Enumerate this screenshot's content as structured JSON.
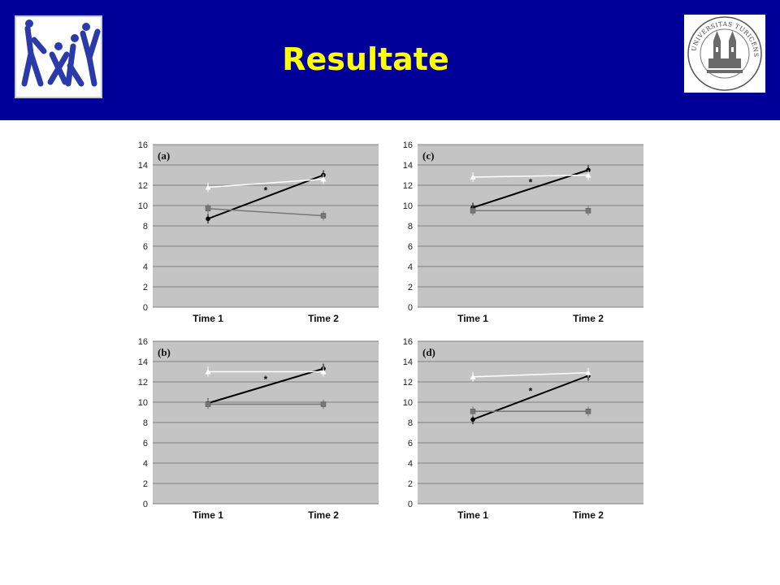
{
  "slide": {
    "title": "Resultate"
  },
  "colors": {
    "header_bg": "#000099",
    "title": "#ffff00",
    "plot_bg": "#c4c4c4",
    "gridline": "#7f7f7f"
  },
  "logos": {
    "left": "figures-logo-icon",
    "right": "university-seal-icon",
    "seal_text": "UNIVERSITAS TURICENSIS"
  },
  "chart_data": [
    {
      "type": "line",
      "panel": "(a)",
      "categories": [
        "Time 1",
        "Time 2"
      ],
      "ylim": [
        0,
        16
      ],
      "yticks": [
        0,
        2,
        4,
        6,
        8,
        10,
        12,
        14,
        16
      ],
      "grid": true,
      "annotation": "*",
      "series": [
        {
          "values": [
            8.7,
            13.0
          ],
          "color": "#000000"
        },
        {
          "values": [
            11.8,
            12.6
          ],
          "color": "#ffffff"
        },
        {
          "values": [
            9.7,
            9.0
          ],
          "color": "#777777"
        }
      ]
    },
    {
      "type": "line",
      "panel": "(c)",
      "categories": [
        "Time 1",
        "Time 2"
      ],
      "ylim": [
        0,
        16
      ],
      "yticks": [
        0,
        2,
        4,
        6,
        8,
        10,
        12,
        14,
        16
      ],
      "grid": true,
      "annotation": "*",
      "series": [
        {
          "values": [
            9.8,
            13.5
          ],
          "color": "#000000"
        },
        {
          "values": [
            12.8,
            13.0
          ],
          "color": "#ffffff"
        },
        {
          "values": [
            9.5,
            9.5
          ],
          "color": "#777777"
        }
      ]
    },
    {
      "type": "line",
      "panel": "(b)",
      "categories": [
        "Time 1",
        "Time 2"
      ],
      "ylim": [
        0,
        16
      ],
      "yticks": [
        0,
        2,
        4,
        6,
        8,
        10,
        12,
        14,
        16
      ],
      "grid": true,
      "annotation": "*",
      "series": [
        {
          "values": [
            9.9,
            13.3
          ],
          "color": "#000000"
        },
        {
          "values": [
            13.0,
            13.0
          ],
          "color": "#ffffff"
        },
        {
          "values": [
            9.8,
            9.8
          ],
          "color": "#777777"
        }
      ]
    },
    {
      "type": "line",
      "panel": "(d)",
      "categories": [
        "Time 1",
        "Time 2"
      ],
      "ylim": [
        0,
        16
      ],
      "yticks": [
        0,
        2,
        4,
        6,
        8,
        10,
        12,
        14,
        16
      ],
      "grid": true,
      "annotation": "*",
      "series": [
        {
          "values": [
            8.3,
            12.6
          ],
          "color": "#000000"
        },
        {
          "values": [
            12.5,
            12.9
          ],
          "color": "#ffffff"
        },
        {
          "values": [
            9.1,
            9.1
          ],
          "color": "#777777"
        }
      ]
    }
  ]
}
